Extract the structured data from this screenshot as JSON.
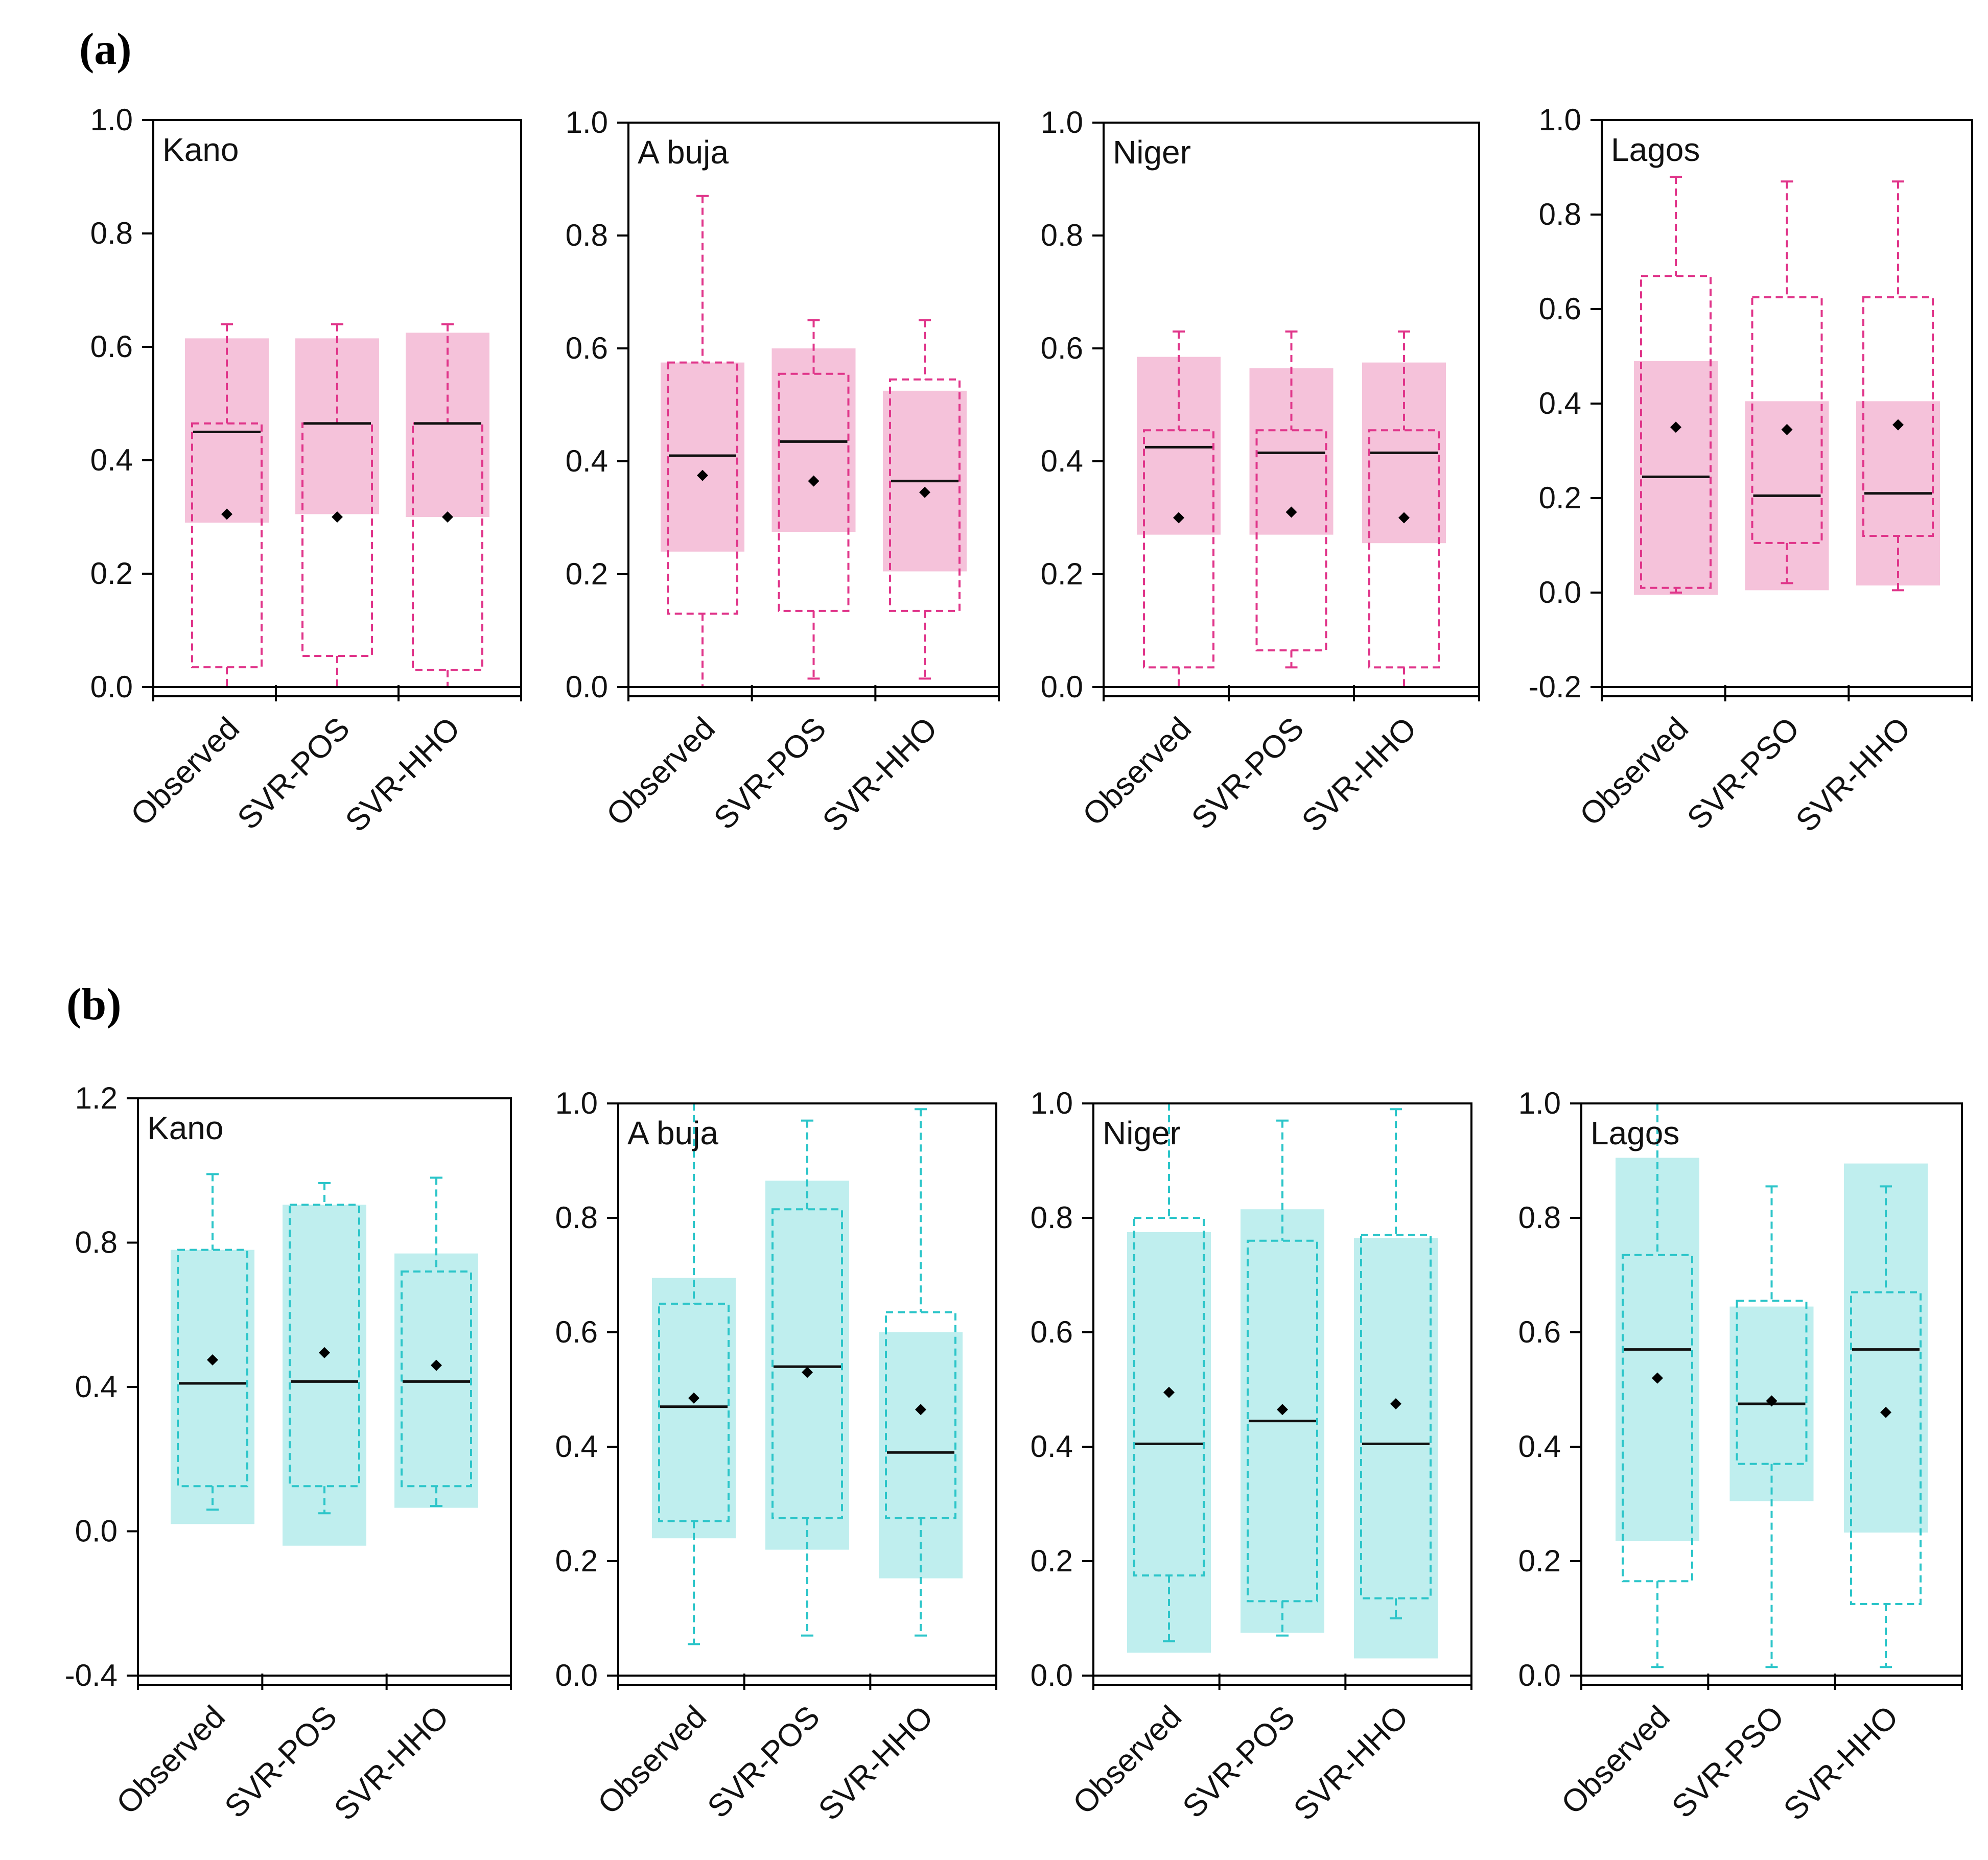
{
  "chart_data": [
    {
      "type": "boxplot",
      "panel": "(a)",
      "colors": {
        "band": "#f5c2da",
        "whisker": "#e0358a",
        "median": "#111111",
        "mean": "#000000"
      },
      "charts": [
        {
          "title": "Kano",
          "ylim": [
            0.0,
            1.0
          ],
          "yticks": [
            0.0,
            0.2,
            0.4,
            0.6,
            0.8,
            1.0
          ],
          "ytick_labels": [
            "0.0",
            "0.2",
            "0.4",
            "0.6",
            "0.8",
            "1.0"
          ],
          "categories": [
            "Observed",
            "SVR-POS",
            "SVR-HHO"
          ],
          "boxes": [
            {
              "min": 0.0,
              "q1": 0.035,
              "median": 0.45,
              "q3": 0.465,
              "max": 0.64,
              "mean": 0.305,
              "band_low": 0.29,
              "band_high": 0.615
            },
            {
              "min": 0.0,
              "q1": 0.055,
              "median": 0.465,
              "q3": 0.465,
              "max": 0.64,
              "mean": 0.3,
              "band_low": 0.305,
              "band_high": 0.615
            },
            {
              "min": 0.0,
              "q1": 0.03,
              "median": 0.465,
              "q3": 0.465,
              "max": 0.64,
              "mean": 0.3,
              "band_low": 0.3,
              "band_high": 0.625
            }
          ]
        },
        {
          "title": "A buja",
          "ylim": [
            0.0,
            1.0
          ],
          "yticks": [
            0.0,
            0.2,
            0.4,
            0.6,
            0.8,
            1.0
          ],
          "ytick_labels": [
            "0.0",
            "0.2",
            "0.4",
            "0.6",
            "0.8",
            "1.0"
          ],
          "categories": [
            "Observed",
            "SVR-POS",
            "SVR-HHO"
          ],
          "boxes": [
            {
              "min": 0.0,
              "q1": 0.13,
              "median": 0.41,
              "q3": 0.575,
              "max": 0.87,
              "mean": 0.375,
              "band_low": 0.24,
              "band_high": 0.575
            },
            {
              "min": 0.015,
              "q1": 0.135,
              "median": 0.435,
              "q3": 0.555,
              "max": 0.65,
              "mean": 0.365,
              "band_low": 0.275,
              "band_high": 0.6
            },
            {
              "min": 0.015,
              "q1": 0.135,
              "median": 0.365,
              "q3": 0.545,
              "max": 0.65,
              "mean": 0.345,
              "band_low": 0.205,
              "band_high": 0.525
            }
          ]
        },
        {
          "title": "Niger",
          "ylim": [
            0.0,
            1.0
          ],
          "yticks": [
            0.0,
            0.2,
            0.4,
            0.6,
            0.8,
            1.0
          ],
          "ytick_labels": [
            "0.0",
            "0.2",
            "0.4",
            "0.6",
            "0.8",
            "1.0"
          ],
          "categories": [
            "Observed",
            "SVR-POS",
            "SVR-HHO"
          ],
          "boxes": [
            {
              "min": 0.0,
              "q1": 0.035,
              "median": 0.425,
              "q3": 0.455,
              "max": 0.63,
              "mean": 0.3,
              "band_low": 0.27,
              "band_high": 0.585
            },
            {
              "min": 0.035,
              "q1": 0.065,
              "median": 0.415,
              "q3": 0.455,
              "max": 0.63,
              "mean": 0.31,
              "band_low": 0.27,
              "band_high": 0.565
            },
            {
              "min": 0.0,
              "q1": 0.035,
              "median": 0.415,
              "q3": 0.455,
              "max": 0.63,
              "mean": 0.3,
              "band_low": 0.255,
              "band_high": 0.575
            }
          ]
        },
        {
          "title": "Lagos",
          "ylim": [
            -0.2,
            1.0
          ],
          "yticks": [
            -0.2,
            0.0,
            0.2,
            0.4,
            0.6,
            0.8,
            1.0
          ],
          "ytick_labels": [
            "-0.2",
            "0.0",
            "0.2",
            "0.4",
            "0.6",
            "0.8",
            "1.0"
          ],
          "categories": [
            "Observed",
            "SVR-PSO",
            "SVR-HHO"
          ],
          "boxes": [
            {
              "min": 0.0,
              "q1": 0.01,
              "median": 0.245,
              "q3": 0.67,
              "max": 0.88,
              "mean": 0.35,
              "band_low": -0.005,
              "band_high": 0.49
            },
            {
              "min": 0.02,
              "q1": 0.105,
              "median": 0.205,
              "q3": 0.625,
              "max": 0.87,
              "mean": 0.345,
              "band_low": 0.005,
              "band_high": 0.405
            },
            {
              "min": 0.005,
              "q1": 0.12,
              "median": 0.21,
              "q3": 0.625,
              "max": 0.87,
              "mean": 0.355,
              "band_low": 0.015,
              "band_high": 0.405
            }
          ]
        }
      ]
    },
    {
      "type": "boxplot",
      "panel": "(b)",
      "colors": {
        "band": "#bfeeee",
        "whisker": "#2cc5c9",
        "median": "#111111",
        "mean": "#000000"
      },
      "charts": [
        {
          "title": "Kano",
          "ylim": [
            -0.4,
            1.2
          ],
          "yticks": [
            -0.4,
            0.0,
            0.4,
            0.8,
            1.2
          ],
          "ytick_labels": [
            "-0.4",
            "0.0",
            "0.4",
            "0.8",
            "1.2"
          ],
          "categories": [
            "Observed",
            "SVR-POS",
            "SVR-HHO"
          ],
          "boxes": [
            {
              "min": 0.06,
              "q1": 0.125,
              "median": 0.41,
              "q3": 0.78,
              "max": 0.99,
              "mean": 0.475,
              "band_low": 0.02,
              "band_high": 0.78
            },
            {
              "min": 0.05,
              "q1": 0.125,
              "median": 0.415,
              "q3": 0.905,
              "max": 0.965,
              "mean": 0.495,
              "band_low": -0.04,
              "band_high": 0.905
            },
            {
              "min": 0.07,
              "q1": 0.125,
              "median": 0.415,
              "q3": 0.72,
              "max": 0.98,
              "mean": 0.46,
              "band_low": 0.065,
              "band_high": 0.77
            }
          ]
        },
        {
          "title": "A buja",
          "ylim": [
            0.0,
            1.0
          ],
          "yticks": [
            0.0,
            0.2,
            0.4,
            0.6,
            0.8,
            1.0
          ],
          "ytick_labels": [
            "0.0",
            "0.2",
            "0.4",
            "0.6",
            "0.8",
            "1.0"
          ],
          "categories": [
            "Observed",
            "SVR-POS",
            "SVR-HHO"
          ],
          "boxes": [
            {
              "min": 0.055,
              "q1": 0.27,
              "median": 0.47,
              "q3": 0.65,
              "max": 1.0,
              "mean": 0.485,
              "band_low": 0.24,
              "band_high": 0.695
            },
            {
              "min": 0.07,
              "q1": 0.275,
              "median": 0.54,
              "q3": 0.815,
              "max": 0.97,
              "mean": 0.53,
              "band_low": 0.22,
              "band_high": 0.865
            },
            {
              "min": 0.07,
              "q1": 0.275,
              "median": 0.39,
              "q3": 0.635,
              "max": 0.99,
              "mean": 0.465,
              "band_low": 0.17,
              "band_high": 0.6
            }
          ]
        },
        {
          "title": "Niger",
          "ylim": [
            0.0,
            1.0
          ],
          "yticks": [
            0.0,
            0.2,
            0.4,
            0.6,
            0.8,
            1.0
          ],
          "ytick_labels": [
            "0.0",
            "0.2",
            "0.4",
            "0.6",
            "0.8",
            "1.0"
          ],
          "categories": [
            "Observed",
            "SVR-POS",
            "SVR-HHO"
          ],
          "boxes": [
            {
              "min": 0.06,
              "q1": 0.175,
              "median": 0.405,
              "q3": 0.8,
              "max": 1.0,
              "mean": 0.495,
              "band_low": 0.04,
              "band_high": 0.775
            },
            {
              "min": 0.07,
              "q1": 0.13,
              "median": 0.445,
              "q3": 0.76,
              "max": 0.97,
              "mean": 0.465,
              "band_low": 0.075,
              "band_high": 0.815
            },
            {
              "min": 0.1,
              "q1": 0.135,
              "median": 0.405,
              "q3": 0.77,
              "max": 0.99,
              "mean": 0.475,
              "band_low": 0.03,
              "band_high": 0.765
            }
          ]
        },
        {
          "title": "Lagos",
          "ylim": [
            0.0,
            1.0
          ],
          "yticks": [
            0.0,
            0.2,
            0.4,
            0.6,
            0.8,
            1.0
          ],
          "ytick_labels": [
            "0.0",
            "0.2",
            "0.4",
            "0.6",
            "0.8",
            "1.0"
          ],
          "categories": [
            "Observed",
            "SVR-PSO",
            "SVR-HHO"
          ],
          "boxes": [
            {
              "min": 0.015,
              "q1": 0.165,
              "median": 0.57,
              "q3": 0.735,
              "max": 1.0,
              "mean": 0.52,
              "band_low": 0.235,
              "band_high": 0.905
            },
            {
              "min": 0.015,
              "q1": 0.37,
              "median": 0.475,
              "q3": 0.655,
              "max": 0.855,
              "mean": 0.48,
              "band_low": 0.305,
              "band_high": 0.645
            },
            {
              "min": 0.015,
              "q1": 0.125,
              "median": 0.57,
              "q3": 0.67,
              "max": 0.855,
              "mean": 0.46,
              "band_low": 0.25,
              "band_high": 0.895
            }
          ]
        }
      ]
    }
  ]
}
